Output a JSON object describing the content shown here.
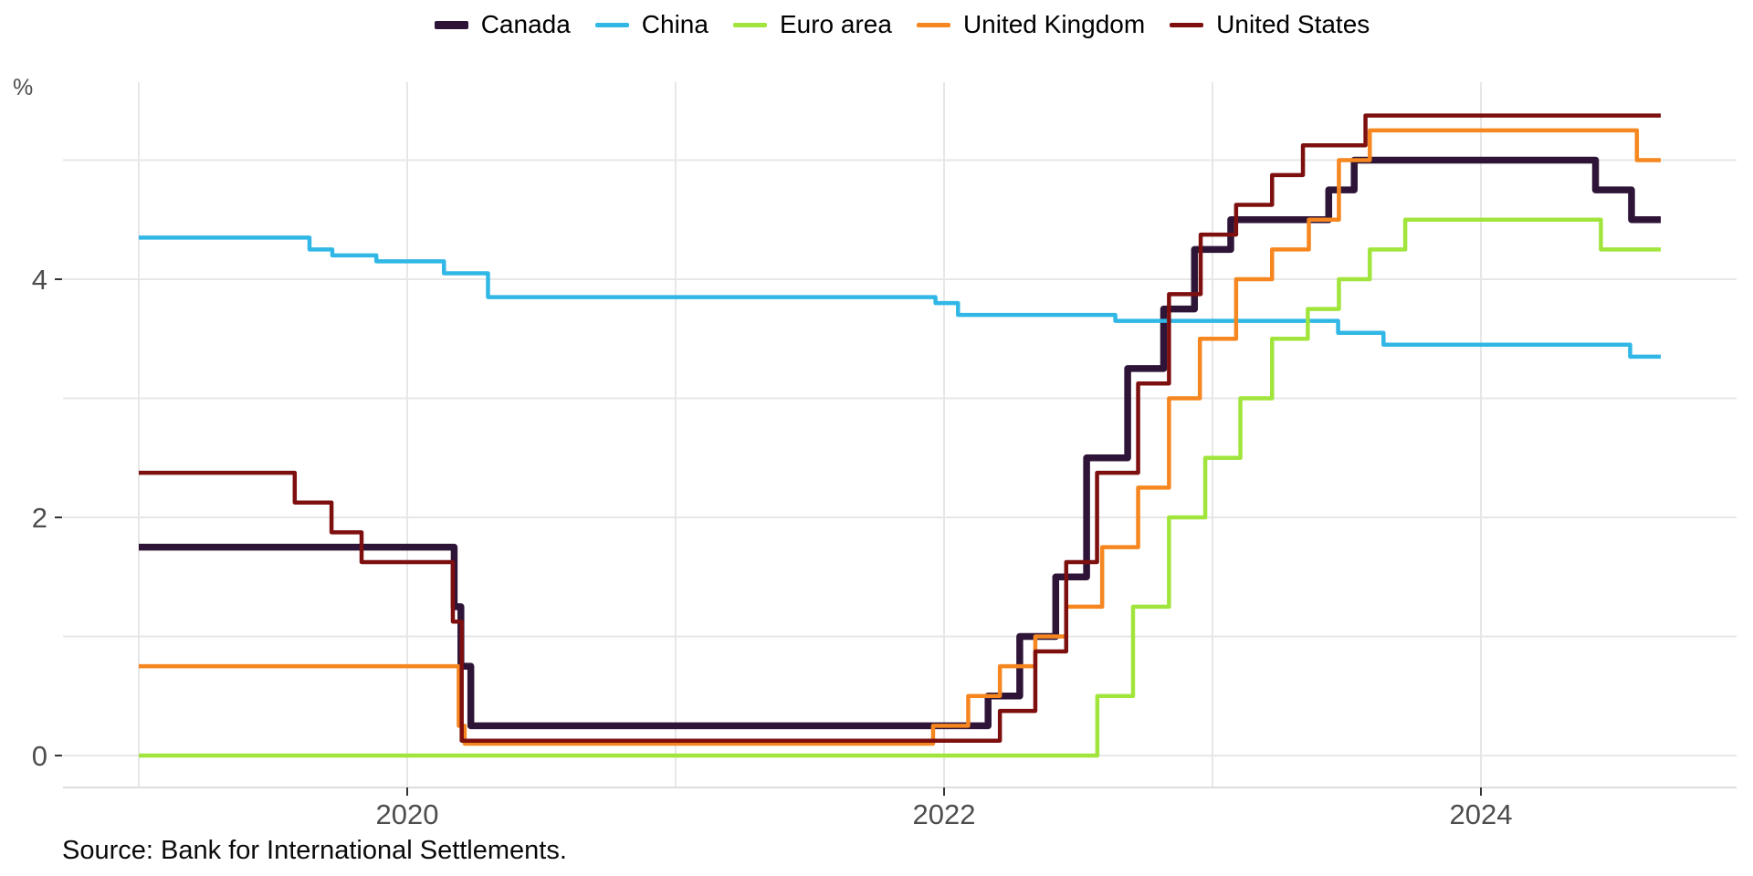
{
  "source": "Source: Bank for International Settlements.",
  "legend_note": "legend items mirror chart_data.series order",
  "chart_data": {
    "type": "line",
    "step": true,
    "title": "",
    "xlabel": "",
    "ylabel": "%",
    "unit_label": "%",
    "x_ticks": [
      2020,
      2022,
      2024
    ],
    "x_gridline_years": [
      2019,
      2020,
      2021,
      2022,
      2023,
      2024
    ],
    "y_ticks": [
      0,
      2,
      4
    ],
    "y_gridlines": [
      0,
      1,
      2,
      3,
      4,
      5
    ],
    "x_range_years": [
      2019.0,
      2024.95
    ],
    "y_range": [
      0,
      5.375
    ],
    "x_end": 2024.67,
    "grid": true,
    "legend_position": "top-center",
    "series": [
      {
        "name": "Canada",
        "color": "#2e1437",
        "thick": true,
        "points": [
          [
            2019.0,
            1.75
          ],
          [
            2020.175,
            1.25
          ],
          [
            2020.2,
            0.75
          ],
          [
            2020.237,
            0.25
          ],
          [
            2022.164,
            0.5
          ],
          [
            2022.282,
            1.0
          ],
          [
            2022.416,
            1.5
          ],
          [
            2022.531,
            2.5
          ],
          [
            2022.684,
            3.25
          ],
          [
            2022.818,
            3.75
          ],
          [
            2022.933,
            4.25
          ],
          [
            2023.068,
            4.5
          ],
          [
            2023.433,
            4.75
          ],
          [
            2023.528,
            5.0
          ],
          [
            2024.427,
            4.75
          ],
          [
            2024.561,
            4.5
          ]
        ]
      },
      {
        "name": "China",
        "color": "#31b7e6",
        "thick": false,
        "points": [
          [
            2019.0,
            4.35
          ],
          [
            2019.636,
            4.25
          ],
          [
            2019.721,
            4.2
          ],
          [
            2019.885,
            4.15
          ],
          [
            2020.137,
            4.05
          ],
          [
            2020.301,
            3.85
          ],
          [
            2021.968,
            3.8
          ],
          [
            2022.052,
            3.7
          ],
          [
            2022.638,
            3.65
          ],
          [
            2023.468,
            3.55
          ],
          [
            2023.637,
            3.45
          ],
          [
            2024.556,
            3.35
          ]
        ]
      },
      {
        "name": "Euro area",
        "color": "#a1e53c",
        "thick": false,
        "points": [
          [
            2019.0,
            0.0
          ],
          [
            2022.571,
            0.5
          ],
          [
            2022.704,
            1.25
          ],
          [
            2022.838,
            2.0
          ],
          [
            2022.973,
            2.5
          ],
          [
            2023.104,
            3.0
          ],
          [
            2023.222,
            3.5
          ],
          [
            2023.355,
            3.75
          ],
          [
            2023.471,
            4.0
          ],
          [
            2023.586,
            4.25
          ],
          [
            2023.718,
            4.5
          ],
          [
            2024.447,
            4.25
          ]
        ]
      },
      {
        "name": "United Kingdom",
        "color": "#f6861f",
        "thick": false,
        "points": [
          [
            2019.0,
            0.75
          ],
          [
            2020.192,
            0.25
          ],
          [
            2020.214,
            0.1
          ],
          [
            2021.959,
            0.25
          ],
          [
            2022.09,
            0.5
          ],
          [
            2022.208,
            0.75
          ],
          [
            2022.34,
            1.0
          ],
          [
            2022.455,
            1.25
          ],
          [
            2022.589,
            1.75
          ],
          [
            2022.723,
            2.25
          ],
          [
            2022.838,
            3.0
          ],
          [
            2022.953,
            3.5
          ],
          [
            2023.088,
            4.0
          ],
          [
            2023.222,
            4.25
          ],
          [
            2023.359,
            4.5
          ],
          [
            2023.471,
            5.0
          ],
          [
            2023.586,
            5.25
          ],
          [
            2024.581,
            5.0
          ]
        ]
      },
      {
        "name": "United States",
        "color": "#7d0f0f",
        "thick": false,
        "points": [
          [
            2019.0,
            2.375
          ],
          [
            2019.581,
            2.125
          ],
          [
            2019.718,
            1.875
          ],
          [
            2019.83,
            1.625
          ],
          [
            2020.17,
            1.125
          ],
          [
            2020.203,
            0.125
          ],
          [
            2022.208,
            0.375
          ],
          [
            2022.34,
            0.875
          ],
          [
            2022.455,
            1.625
          ],
          [
            2022.57,
            2.375
          ],
          [
            2022.723,
            3.125
          ],
          [
            2022.838,
            3.875
          ],
          [
            2022.956,
            4.375
          ],
          [
            2023.088,
            4.625
          ],
          [
            2023.222,
            4.875
          ],
          [
            2023.337,
            5.125
          ],
          [
            2023.57,
            5.375
          ]
        ]
      }
    ],
    "style": {
      "grid_color": "#e7e7e7",
      "axis_line_color": "#dedede",
      "tick_mark_color": "#333333",
      "tick_label_color": "#4d4d4d",
      "background": "#ffffff"
    }
  }
}
